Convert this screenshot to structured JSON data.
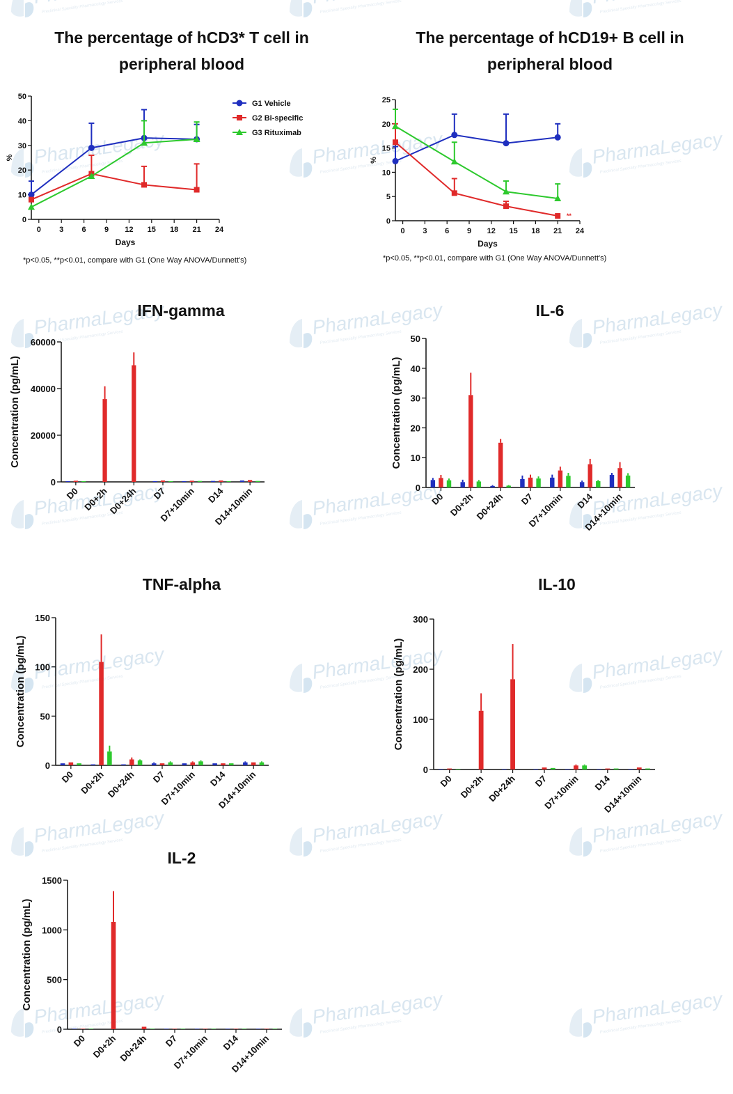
{
  "watermark": {
    "brand": "PharmaLegacy",
    "tagline": "Preclinical Specialty Pharmacology Services"
  },
  "legend": [
    {
      "name": "G1 Vehicle",
      "color": "#1f2fbf",
      "marker": "circle"
    },
    {
      "name": "G2 Bi-specific",
      "color": "#e02a2a",
      "marker": "square"
    },
    {
      "name": "G3 Rituximab",
      "color": "#2dc92d",
      "marker": "triangle"
    }
  ],
  "chart_data": [
    {
      "id": "cd3",
      "type": "line",
      "title": "The percentage of hCD3* T cell in peripheral blood",
      "title_lines": [
        "The percentage of hCD3* T cell in",
        "peripheral blood"
      ],
      "xlabel": "Days",
      "ylabel": "%",
      "xlim": [
        -1,
        24
      ],
      "ylim": [
        0,
        50
      ],
      "xticks": [
        0,
        3,
        6,
        9,
        12,
        15,
        18,
        21,
        24
      ],
      "yticks": [
        0,
        10,
        20,
        30,
        40,
        50
      ],
      "note": "*p<0.05, **p<0.01,  compare with G1 (One Way ANOVA/Dunnett's)",
      "series": [
        {
          "name": "G1 Vehicle",
          "x": [
            -1,
            7,
            14,
            21
          ],
          "y": [
            10,
            29,
            33,
            32.5
          ],
          "err": [
            5.5,
            10,
            11.5,
            6
          ]
        },
        {
          "name": "G2 Bi-specific",
          "x": [
            -1,
            7,
            14,
            21
          ],
          "y": [
            8,
            18.5,
            14,
            12
          ],
          "err": [
            0,
            7.5,
            7.5,
            10.5
          ]
        },
        {
          "name": "G3 Rituximab",
          "x": [
            -1,
            7,
            14,
            21
          ],
          "y": [
            5,
            17.5,
            31,
            32.5
          ],
          "err": [
            0,
            0,
            9,
            7
          ]
        }
      ]
    },
    {
      "id": "cd19",
      "type": "line",
      "title": "The percentage of hCD19+ B cell in peripheral blood",
      "title_lines": [
        "The percentage of hCD19+ B cell in",
        "peripheral blood"
      ],
      "xlabel": "Days",
      "ylabel": "%",
      "xlim": [
        -1,
        24
      ],
      "ylim": [
        0,
        25
      ],
      "xticks": [
        0,
        3,
        6,
        9,
        12,
        15,
        18,
        21,
        24
      ],
      "yticks": [
        0,
        5,
        10,
        15,
        20,
        25
      ],
      "note": "*p<0.05, **p<0.01,  compare with G1 (One Way ANOVA/Dunnett's)",
      "annotation": {
        "text": "**",
        "x": 22.2,
        "y": 1
      },
      "series": [
        {
          "name": "G1 Vehicle",
          "x": [
            -1,
            7,
            14,
            21
          ],
          "y": [
            12.3,
            17.7,
            16,
            17.2
          ],
          "err": [
            3,
            4.3,
            6,
            2.8
          ]
        },
        {
          "name": "G2 Bi-specific",
          "x": [
            -1,
            7,
            14,
            21
          ],
          "y": [
            16.2,
            5.7,
            3,
            1
          ],
          "err": [
            3.8,
            3,
            1,
            0
          ]
        },
        {
          "name": "G3 Rituximab",
          "x": [
            -1,
            7,
            14,
            21
          ],
          "y": [
            19.5,
            12.2,
            6,
            4.6
          ],
          "err": [
            3.5,
            4,
            2.2,
            3
          ]
        }
      ]
    },
    {
      "id": "ifn",
      "type": "bar",
      "title": "IFN-gamma",
      "ylabel": "Concentration (pg/mL)",
      "ylim": [
        0,
        60000
      ],
      "yticks": [
        0,
        20000,
        40000,
        60000
      ],
      "categories": [
        "D0",
        "D0+2h",
        "D0+24h",
        "D7",
        "D7+10min",
        "D14",
        "D14+10min"
      ],
      "series": [
        {
          "name": "G1 Vehicle",
          "values": [
            300,
            0,
            0,
            300,
            300,
            400,
            600
          ],
          "err": [
            0,
            0,
            0,
            0,
            0,
            0,
            0
          ]
        },
        {
          "name": "G2 Bi-specific",
          "values": [
            500,
            35500,
            50000,
            600,
            500,
            600,
            800
          ],
          "err": [
            0,
            5500,
            5500,
            0,
            0,
            0,
            0
          ]
        },
        {
          "name": "G3 Rituximab",
          "values": [
            300,
            0,
            0,
            300,
            400,
            300,
            400
          ],
          "err": [
            0,
            0,
            0,
            0,
            0,
            0,
            0
          ]
        }
      ]
    },
    {
      "id": "il6",
      "type": "bar",
      "title": "IL-6",
      "ylabel": "Concentration (pg/mL)",
      "ylim": [
        0,
        50
      ],
      "yticks": [
        0,
        10,
        20,
        30,
        40,
        50
      ],
      "categories": [
        "D0",
        "D0+2h",
        "D0+24h",
        "D7",
        "D7+10min",
        "D14",
        "D14+10min"
      ],
      "series": [
        {
          "name": "G1 Vehicle",
          "values": [
            2.5,
            1.8,
            0.5,
            2.8,
            3.3,
            1.8,
            4.2
          ],
          "err": [
            0.7,
            0.8,
            0.3,
            1.2,
            1,
            0.5,
            0.7
          ]
        },
        {
          "name": "G2 Bi-specific",
          "values": [
            3.2,
            31,
            15,
            3.3,
            5.7,
            7.8,
            6.5
          ],
          "err": [
            1,
            7.5,
            1.3,
            1,
            1.3,
            1.8,
            2
          ]
        },
        {
          "name": "G3 Rituximab",
          "values": [
            2.4,
            2,
            0.6,
            3,
            3.9,
            2.1,
            4
          ],
          "err": [
            0.6,
            0.5,
            0.2,
            0.7,
            1,
            0.4,
            0.8
          ]
        }
      ]
    },
    {
      "id": "tnf",
      "type": "bar",
      "title": "TNF-alpha",
      "ylabel": "Concentration (pg/mL)",
      "ylim": [
        0,
        150
      ],
      "yticks": [
        0,
        50,
        100,
        150
      ],
      "categories": [
        "D0",
        "D0+2h",
        "D0+24h",
        "D7",
        "D7+10min",
        "D14",
        "D14+10min"
      ],
      "series": [
        {
          "name": "G1 Vehicle",
          "values": [
            2,
            1,
            1,
            2,
            2,
            2,
            3
          ],
          "err": [
            0,
            0,
            0,
            1,
            0,
            0,
            1
          ]
        },
        {
          "name": "G2 Bi-specific",
          "values": [
            3,
            105,
            6,
            2,
            3,
            2,
            3
          ],
          "err": [
            0,
            28,
            2,
            0,
            1,
            0,
            0
          ]
        },
        {
          "name": "G3 Rituximab",
          "values": [
            2,
            14,
            5,
            3,
            4,
            2,
            3
          ],
          "err": [
            0,
            6,
            1,
            1,
            1,
            0,
            1
          ]
        }
      ]
    },
    {
      "id": "il10",
      "type": "bar",
      "title": "IL-10",
      "ylabel": "Concentration (pg/mL)",
      "ylim": [
        0,
        300
      ],
      "yticks": [
        0,
        100,
        200,
        300
      ],
      "categories": [
        "D0",
        "D0+2h",
        "D0+24h",
        "D7",
        "D7+10min",
        "D14",
        "D14+10min"
      ],
      "series": [
        {
          "name": "G1 Vehicle",
          "values": [
            1,
            0,
            1,
            1,
            1,
            1,
            1
          ],
          "err": [
            0,
            0,
            0,
            0,
            0,
            0,
            0
          ]
        },
        {
          "name": "G2 Bi-specific",
          "values": [
            2,
            117,
            180,
            4,
            8,
            2,
            4
          ],
          "err": [
            0,
            35,
            70,
            0,
            2,
            0,
            0
          ]
        },
        {
          "name": "G3 Rituximab",
          "values": [
            1,
            0,
            0,
            3,
            8,
            2,
            2
          ],
          "err": [
            0,
            0,
            0,
            0,
            2,
            0,
            0
          ]
        }
      ]
    },
    {
      "id": "il2",
      "type": "bar",
      "title": "IL-2",
      "ylabel": "Concentration (pg/mL)",
      "ylim": [
        0,
        1500
      ],
      "yticks": [
        0,
        500,
        1000,
        1500
      ],
      "categories": [
        "D0",
        "D0+2h",
        "D0+24h",
        "D7",
        "D7+10min",
        "D14",
        "D14+10min"
      ],
      "series": [
        {
          "name": "G1 Vehicle",
          "values": [
            5,
            0,
            0,
            5,
            5,
            5,
            5
          ],
          "err": [
            0,
            0,
            0,
            0,
            0,
            0,
            0
          ]
        },
        {
          "name": "G2 Bi-specific",
          "values": [
            5,
            1080,
            25,
            5,
            5,
            5,
            5
          ],
          "err": [
            0,
            310,
            0,
            0,
            0,
            0,
            0
          ]
        },
        {
          "name": "G3 Rituximab",
          "values": [
            5,
            0,
            5,
            5,
            5,
            5,
            5
          ],
          "err": [
            0,
            0,
            0,
            0,
            0,
            0,
            0
          ]
        }
      ]
    }
  ]
}
